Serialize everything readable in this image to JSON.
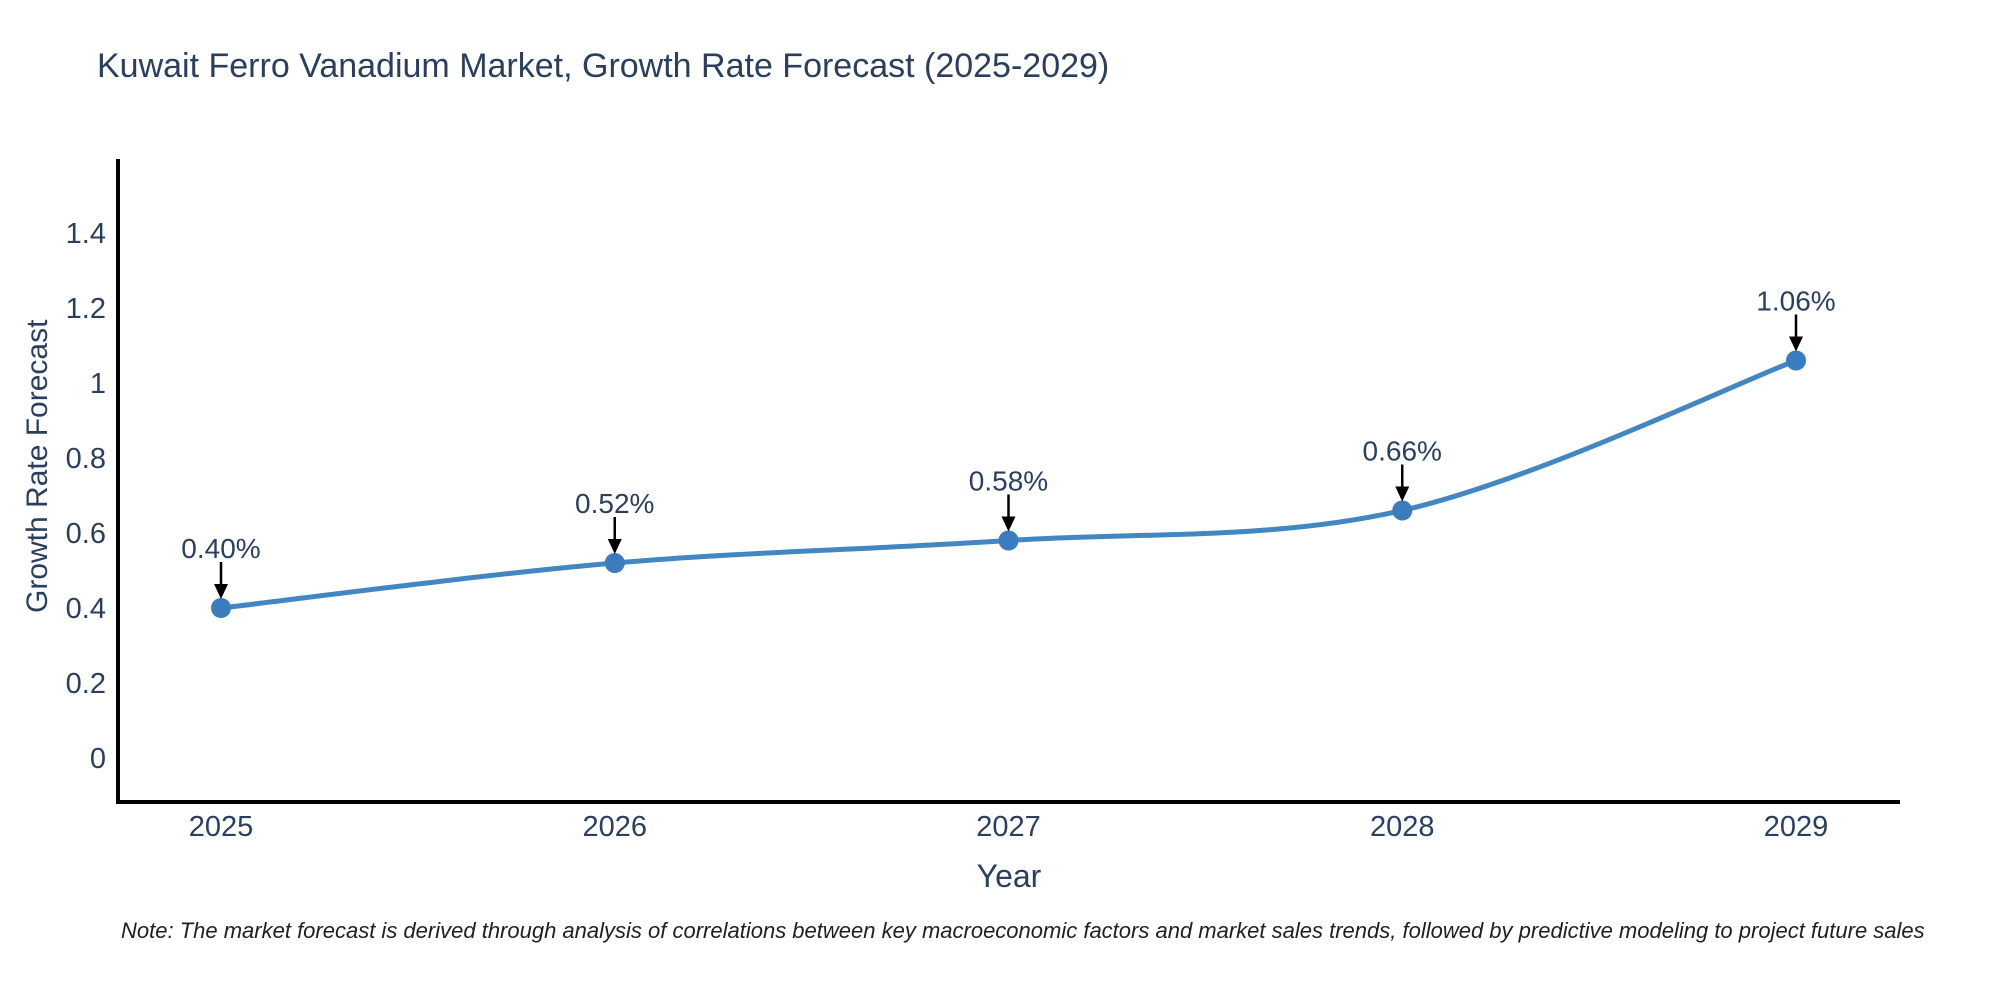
{
  "note": "Note: The market forecast is derived through analysis of correlations between key macroeconomic factors and market sales trends, followed by predictive modeling to project future sales",
  "chart_data": {
    "type": "line",
    "title": "Kuwait Ferro Vanadium Market, Growth Rate Forecast (2025-2029)",
    "xlabel": "Year",
    "ylabel": "Growth Rate Forecast",
    "categories": [
      2025,
      2026,
      2027,
      2028,
      2029
    ],
    "values": [
      0.4,
      0.52,
      0.58,
      0.66,
      1.06
    ],
    "unit": "%",
    "point_labels": [
      "0.40%",
      "0.52%",
      "0.58%",
      "0.66%",
      "1.06%"
    ],
    "x_tick_labels": [
      "2025",
      "2026",
      "2027",
      "2028",
      "2029"
    ],
    "y_ticks": [
      0,
      0.2,
      0.4,
      0.6,
      0.8,
      1,
      1.2,
      1.4
    ],
    "y_tick_labels": [
      "0",
      "0.2",
      "0.4",
      "0.6",
      "0.8",
      "1",
      "1.2",
      "1.4"
    ],
    "ylim": [
      -0.12,
      1.6
    ],
    "xlim": [
      2024.74,
      2029.26
    ],
    "grid": false,
    "legend": "none",
    "line_shape": "spline",
    "colors": {
      "line": "#4287c1",
      "marker": "#3a7cbd",
      "axis": "#000000",
      "text": "#2a3f5f",
      "annotation_arrow": "#000000",
      "note_text": "#1f1f1f",
      "background": "#ffffff"
    }
  }
}
